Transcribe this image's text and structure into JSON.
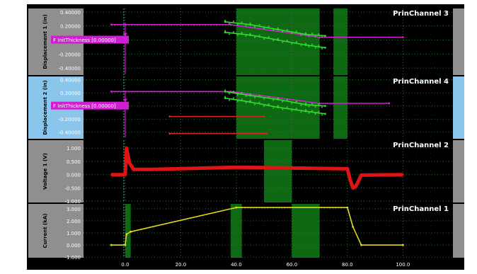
{
  "colors": {
    "page": "#ffffff",
    "frame": "#000000",
    "panel_bg": "#000000",
    "axis_band_default": "#8f8f8f",
    "axis_band_selected": "#8ac6ec",
    "grid": "#3c6e3c",
    "highlight": "#0e6a12",
    "tick_text": "#ffffff",
    "title_text": "#ffffff",
    "ylabel_text": "#000000",
    "marker": "#3fb3b3"
  },
  "x_axis": {
    "range": [
      -15,
      118
    ],
    "tick_values": [
      0,
      20,
      40,
      60,
      80,
      100
    ],
    "tick_labels": [
      "0.0",
      "20.0",
      "40.0",
      "60.0",
      "80.0",
      "100.0"
    ],
    "marker_x": -0.5
  },
  "panels": [
    {
      "title": "PrinChannel 3",
      "ylabel": "Displacement 1 (in)",
      "selected": false,
      "ylim": [
        -0.5,
        0.45
      ],
      "tick_values": [
        0.4,
        0.2,
        0.0,
        -0.2,
        -0.4
      ],
      "tick_labels": [
        "0.40000",
        "0.20000",
        "0.00000",
        "-0.20000",
        "-0.40000"
      ],
      "highlights": [
        [
          40,
          70
        ],
        [
          75,
          80
        ]
      ],
      "annotation": "F InitThickness  [0.00000]",
      "annotation_y": 0.0
    },
    {
      "title": "PrinChannel 4",
      "ylabel": "Displacement 2 (in)",
      "selected": true,
      "ylim": [
        -0.5,
        0.45
      ],
      "tick_values": [
        0.4,
        0.2,
        0.0,
        -0.2,
        -0.4
      ],
      "tick_labels": [
        "0.40000",
        "0.20000",
        "0.00000",
        "-0.20000",
        "-0.40000"
      ],
      "highlights": [
        [
          40,
          70
        ],
        [
          75,
          80
        ]
      ],
      "annotation": "F InitThickness  [0.00000]",
      "annotation_y": 0.0
    },
    {
      "title": "PrinChannel 2",
      "ylabel": "Voltage 1 (V)",
      "selected": false,
      "ylim": [
        -1.05,
        1.3
      ],
      "tick_values": [
        1.0,
        0.5,
        0.0,
        -0.5,
        -1.0
      ],
      "tick_labels": [
        "1.000",
        "0.500",
        "0.000",
        "-0.500",
        "-1.000"
      ],
      "highlights": [
        [
          50,
          60
        ]
      ],
      "annotation": "",
      "annotation_y": 0
    },
    {
      "title": "PrinChannel 1",
      "ylabel": "Current (kA)",
      "selected": false,
      "ylim": [
        -1.05,
        3.4
      ],
      "tick_values": [
        3.0,
        2.0,
        1.0,
        0.0,
        -1.0
      ],
      "tick_labels": [
        "3.000",
        "2.000",
        "1.000",
        "0.000",
        "-1.000"
      ],
      "highlights": [
        [
          0,
          2
        ],
        [
          38,
          42
        ],
        [
          60,
          70
        ]
      ],
      "annotation": "",
      "annotation_y": 0
    }
  ],
  "chart_data": [
    {
      "type": "line",
      "title": "PrinChannel 3",
      "ylabel": "Displacement 1 (in)",
      "ylim": [
        -0.5,
        0.45
      ],
      "xlim": [
        -15,
        118
      ],
      "series": [
        {
          "color": "#d21ed2",
          "x": [
            -5,
            38,
            70,
            100
          ],
          "y": [
            0.22,
            0.22,
            0.04,
            0.04
          ]
        },
        {
          "color": "#33dd33",
          "x": [
            36,
            45,
            55,
            65,
            72
          ],
          "y": [
            0.26,
            0.22,
            0.15,
            0.08,
            0.06
          ]
        },
        {
          "color": "#33dd33",
          "x": [
            36,
            45,
            55,
            65,
            72
          ],
          "y": [
            0.11,
            0.07,
            0.0,
            -0.07,
            -0.11
          ]
        }
      ]
    },
    {
      "type": "line",
      "title": "PrinChannel 4",
      "ylabel": "Displacement 2 (in)",
      "ylim": [
        -0.5,
        0.45
      ],
      "xlim": [
        -15,
        118
      ],
      "series": [
        {
          "color": "#d21ed2",
          "x": [
            -5,
            38,
            70,
            95
          ],
          "y": [
            0.22,
            0.22,
            0.04,
            0.04
          ]
        },
        {
          "color": "#33dd33",
          "x": [
            36,
            45,
            55,
            65,
            72
          ],
          "y": [
            0.22,
            0.16,
            0.1,
            0.02,
            0.0
          ]
        },
        {
          "color": "#33dd33",
          "x": [
            36,
            45,
            55,
            65,
            72
          ],
          "y": [
            0.12,
            0.06,
            -0.02,
            -0.08,
            -0.12
          ]
        },
        {
          "color": "#dd2222",
          "x": [
            16,
            50
          ],
          "y": [
            -0.16,
            -0.16
          ]
        },
        {
          "color": "#dd2222",
          "x": [
            16,
            51
          ],
          "y": [
            -0.42,
            -0.42
          ]
        }
      ]
    },
    {
      "type": "line",
      "title": "PrinChannel 2",
      "ylabel": "Voltage 1 (V)",
      "ylim": [
        -1.05,
        1.3
      ],
      "xlim": [
        -15,
        118
      ],
      "series": [
        {
          "color": "#e01414",
          "x": [
            -5,
            0,
            0.5,
            1.5,
            3,
            10,
            40,
            80,
            81,
            82,
            83,
            85,
            100
          ],
          "y": [
            0.0,
            0.0,
            1.0,
            0.45,
            0.2,
            0.2,
            0.28,
            0.22,
            -0.2,
            -0.5,
            -0.45,
            -0.02,
            0.0
          ]
        }
      ]
    },
    {
      "type": "line",
      "title": "PrinChannel 1",
      "ylabel": "Current (kA)",
      "ylim": [
        -1.05,
        3.4
      ],
      "xlim": [
        -15,
        118
      ],
      "series": [
        {
          "color": "#e8d818",
          "x": [
            -5,
            0,
            0.5,
            2,
            40,
            80,
            82,
            85,
            100
          ],
          "y": [
            0.0,
            0.0,
            0.9,
            1.1,
            3.1,
            3.1,
            1.5,
            0.0,
            0.0
          ]
        }
      ]
    }
  ]
}
